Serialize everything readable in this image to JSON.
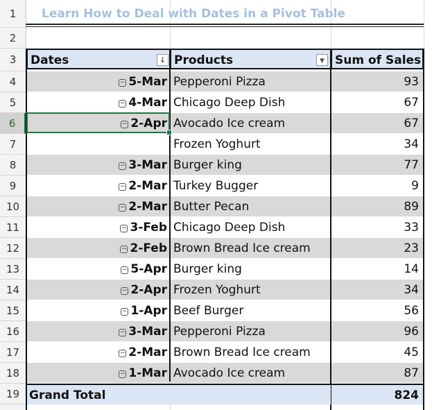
{
  "spreadsheet": {
    "row_numbers": [
      "1",
      "2",
      "3",
      "4",
      "5",
      "6",
      "7",
      "8",
      "9",
      "10",
      "11",
      "12",
      "13",
      "14",
      "15",
      "16",
      "17",
      "18",
      "19"
    ],
    "active_row": "6",
    "title": "Learn How to Deal with Dates in a Pivot Table",
    "headers": {
      "dates": "Dates",
      "products": "Products",
      "sales": "Sum of Sales"
    },
    "rows": [
      {
        "date": "5-Mar",
        "product": "Pepperoni Pizza",
        "sales": "93"
      },
      {
        "date": "4-Mar",
        "product": "Chicago Deep Dish",
        "sales": "67"
      },
      {
        "date": "2-Apr",
        "product": "Avocado Ice cream",
        "sales": "67"
      },
      {
        "date": "",
        "product": "Frozen Yoghurt",
        "sales": "34"
      },
      {
        "date": "3-Mar",
        "product": "Burger king",
        "sales": "77"
      },
      {
        "date": "2-Mar",
        "product": "Turkey Bugger",
        "sales": "9"
      },
      {
        "date": "2-Mar",
        "product": "Butter Pecan",
        "sales": "89"
      },
      {
        "date": "3-Feb",
        "product": "Chicago Deep Dish",
        "sales": "33"
      },
      {
        "date": "2-Feb",
        "product": "Brown Bread Ice cream",
        "sales": "23"
      },
      {
        "date": "5-Apr",
        "product": "Burger king",
        "sales": "14"
      },
      {
        "date": "2-Apr",
        "product": "Frozen Yoghurt",
        "sales": "34"
      },
      {
        "date": "1-Apr",
        "product": "Beef Burger",
        "sales": "56"
      },
      {
        "date": "3-Mar",
        "product": "Pepperoni Pizza",
        "sales": "96"
      },
      {
        "date": "2-Mar",
        "product": "Brown Bread Ice cream",
        "sales": "45"
      },
      {
        "date": "1-Mar",
        "product": "Avocado Ice cream",
        "sales": "87"
      }
    ],
    "grand_total": {
      "label": "Grand Total",
      "value": "824"
    },
    "collapse_symbol": "−",
    "sort_icon": "↓",
    "filter_icon": "▼",
    "colors": {
      "header_fill": "#dbe5f3",
      "band_fill": "#d9d9d9",
      "title": "#a6bfe0",
      "selection": "#217346"
    }
  }
}
